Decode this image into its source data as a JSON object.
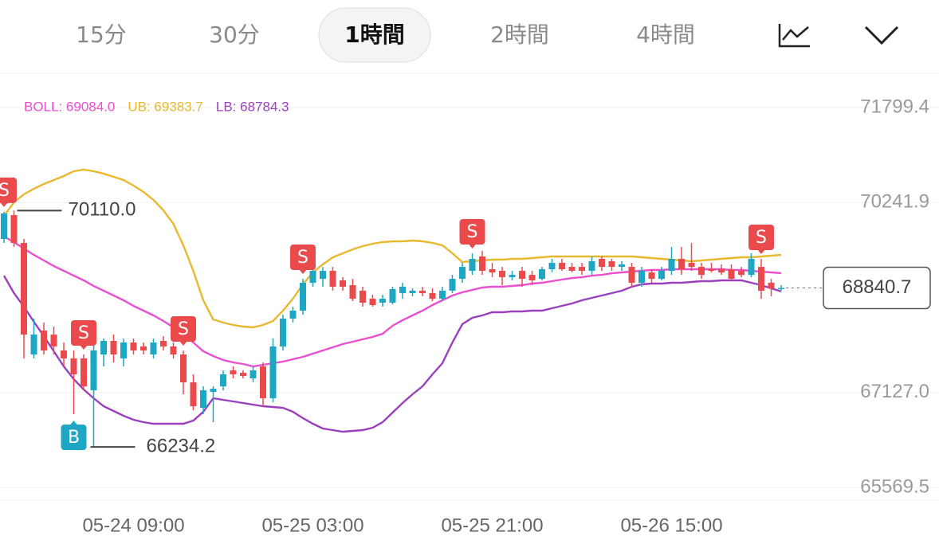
{
  "tabs": {
    "items": [
      "15分",
      "30分",
      "1時間",
      "2時間",
      "4時間"
    ],
    "selected": 2
  },
  "chart_data": {
    "type": "candlestick",
    "categories": [
      null,
      null,
      null,
      null,
      null,
      null,
      null,
      null,
      null,
      null,
      null,
      null,
      null,
      "05-24 09:00",
      null,
      null,
      null,
      null,
      null,
      null,
      null,
      null,
      null,
      null,
      null,
      null,
      null,
      null,
      null,
      null,
      null,
      "05-25 03:00",
      null,
      null,
      null,
      null,
      null,
      null,
      null,
      null,
      null,
      null,
      null,
      null,
      null,
      null,
      null,
      null,
      null,
      "05-25 21:00",
      null,
      null,
      null,
      null,
      null,
      null,
      null,
      null,
      null,
      null,
      null,
      null,
      null,
      null,
      null,
      null,
      null,
      "05-26 15:00",
      null,
      null,
      null,
      null,
      null,
      null,
      null,
      null,
      null,
      null,
      null
    ],
    "open": [
      69644,
      70036,
      69579,
      67751,
      68143,
      68077,
      67816,
      67686,
      67686,
      67163,
      67751,
      67973,
      67686,
      67947,
      67882,
      67751,
      67973,
      67882,
      67751,
      67294,
      66876,
      67137,
      67228,
      67490,
      67450,
      67359,
      67555,
      67033,
      67882,
      68339,
      68469,
      68926,
      68991,
      69122,
      68965,
      68887,
      68796,
      68665,
      68600,
      68600,
      68757,
      68757,
      68796,
      68757,
      68665,
      68796,
      68991,
      69122,
      69357,
      69148,
      69122,
      69017,
      69122,
      69056,
      68991,
      69148,
      69253,
      69187,
      69187,
      69122,
      69318,
      69279,
      69187,
      69187,
      68926,
      69096,
      68991,
      69122,
      69318,
      69253,
      69187,
      69148,
      69148,
      69148,
      69122,
      69056,
      69187,
      68926,
      68822
    ],
    "high": [
      70090,
      70110.0,
      69644,
      68339,
      68273,
      68208,
      67947,
      67816,
      67751,
      67947,
      68012,
      68077,
      68012,
      68012,
      67947,
      68012,
      68051,
      67947,
      67816,
      67425,
      67228,
      67228,
      67490,
      67555,
      67490,
      67555,
      67621,
      68012,
      68404,
      68535,
      68991,
      69253,
      69187,
      69187,
      69017,
      68991,
      68861,
      68730,
      68730,
      68861,
      68926,
      68835,
      68861,
      68835,
      68861,
      69056,
      69253,
      69409,
      69448,
      69253,
      69187,
      69122,
      69187,
      69122,
      69187,
      69318,
      69318,
      69253,
      69253,
      69357,
      69357,
      69318,
      69279,
      69253,
      69187,
      69148,
      69187,
      69514,
      69514,
      69579,
      69253,
      69253,
      69227,
      69227,
      69187,
      69409,
      69318,
      68991,
      68887
    ],
    "low": [
      69579,
      69514,
      67686,
      67686,
      67751,
      67751,
      67555,
      66771,
      67163,
      66234.2,
      67555,
      67621,
      67555,
      67751,
      67751,
      67686,
      67816,
      67686,
      67098,
      66837,
      66771,
      66641,
      67163,
      67359,
      67359,
      67294,
      66902,
      66967,
      67816,
      68273,
      68404,
      68861,
      68861,
      68796,
      68796,
      68626,
      68535,
      68535,
      68535,
      68574,
      68665,
      68704,
      68704,
      68626,
      68626,
      68757,
      68926,
      69056,
      69056,
      69017,
      68887,
      68965,
      68861,
      68887,
      68965,
      69096,
      69122,
      69096,
      69056,
      69056,
      69122,
      69122,
      69122,
      68861,
      68861,
      68926,
      68965,
      69056,
      69056,
      69122,
      68991,
      69096,
      69056,
      68965,
      69017,
      69017,
      68665,
      68704,
      68796
    ],
    "close": [
      70062,
      69579,
      68077,
      68077,
      67816,
      67882,
      67686,
      67425,
      67228,
      67816,
      67973,
      67751,
      67947,
      67816,
      67816,
      67947,
      67882,
      67751,
      67294,
      66902,
      67163,
      67189,
      67425,
      67425,
      67398,
      67490,
      67033,
      67882,
      68339,
      68469,
      68926,
      69122,
      69122,
      68861,
      68861,
      68665,
      68600,
      68561,
      68665,
      68822,
      68861,
      68796,
      68757,
      68665,
      68796,
      68991,
      69187,
      69318,
      69122,
      69096,
      69017,
      69056,
      68991,
      68965,
      69148,
      69253,
      69148,
      69122,
      69122,
      69279,
      69187,
      69187,
      69227,
      68926,
      69122,
      68991,
      69122,
      69318,
      69148,
      69187,
      69056,
      69122,
      69096,
      68991,
      69056,
      69318,
      68796,
      68835,
      68840.7
    ],
    "up_color": "#1ea7c4",
    "down_color": "#ea4a4c",
    "series": [
      {
        "name": "BOLL: 69084.0",
        "color": "#ea4fcf",
        "values": [
          69684,
          69592,
          69487,
          69383,
          69292,
          69200,
          69122,
          69043,
          68965,
          68874,
          68796,
          68717,
          68639,
          68548,
          68469,
          68391,
          68299,
          68195,
          68077,
          67947,
          67803,
          67725,
          67660,
          67621,
          67594,
          67555,
          67581,
          67607,
          67633,
          67673,
          67712,
          67764,
          67816,
          67869,
          67921,
          67960,
          67999,
          68038,
          68090,
          68221,
          68313,
          68391,
          68469,
          68561,
          68639,
          68717,
          68770,
          68809,
          68848,
          68861,
          68861,
          68874,
          68887,
          68913,
          68926,
          68952,
          68978,
          69004,
          69017,
          69043,
          69056,
          69082,
          69096,
          69109,
          69122,
          69135,
          69135,
          69148,
          69148,
          69148,
          69148,
          69148,
          69148,
          69135,
          69135,
          69122,
          69109,
          69096,
          69084.0
        ]
      },
      {
        "name": "UB: 69383.7",
        "color": "#e8b82e",
        "values": [
          70023,
          70246,
          70376,
          70468,
          70546,
          70611,
          70676,
          70755,
          70781,
          70755,
          70716,
          70663,
          70611,
          70520,
          70415,
          70285,
          70115,
          69893,
          69540,
          69122,
          68639,
          68326,
          68273,
          68234,
          68208,
          68195,
          68234,
          68299,
          68469,
          68665,
          68900,
          69096,
          69227,
          69344,
          69409,
          69474,
          69527,
          69566,
          69592,
          69605,
          69605,
          69618,
          69605,
          69579,
          69540,
          69409,
          69266,
          69279,
          69292,
          69305,
          69305,
          69318,
          69318,
          69331,
          69344,
          69357,
          69357,
          69357,
          69357,
          69357,
          69357,
          69357,
          69357,
          69357,
          69344,
          69331,
          69318,
          69305,
          69292,
          69279,
          69292,
          69305,
          69318,
          69331,
          69344,
          69344,
          69357,
          69370,
          69383.7
        ]
      },
      {
        "name": "LB: 68784.3",
        "color": "#9a40bf",
        "values": [
          69043,
          68757,
          68535,
          68286,
          68051,
          67803,
          67555,
          67346,
          67176,
          67033,
          66902,
          66824,
          66745,
          66680,
          66641,
          66615,
          66615,
          66615,
          66615,
          66667,
          66811,
          67033,
          67006,
          66980,
          66954,
          66928,
          66902,
          66889,
          66876,
          66811,
          66706,
          66615,
          66536,
          66510,
          66484,
          66497,
          66510,
          66549,
          66641,
          66798,
          66954,
          67098,
          67228,
          67425,
          67607,
          67947,
          68247,
          68352,
          68391,
          68443,
          68443,
          68456,
          68456,
          68469,
          68469,
          68509,
          68548,
          68587,
          68639,
          68678,
          68717,
          68757,
          68796,
          68861,
          68900,
          68913,
          68913,
          68926,
          68926,
          68939,
          68952,
          68952,
          68965,
          68965,
          68965,
          68926,
          68887,
          68835,
          68784.3
        ]
      }
    ],
    "ylim": [
      65361,
      72348
    ],
    "yticks": [
      65569.5,
      {
        "value": 67127,
        "label": "67127.0"
      },
      70241.9,
      71799.4
    ],
    "grid": true,
    "high_label": "70110.0",
    "low_label": "66234.2",
    "last_price_label": "68840.7",
    "markers": [
      {
        "index": 0,
        "label": "S"
      },
      {
        "index": 7,
        "label": "B"
      },
      {
        "index": 8,
        "label": "S"
      },
      {
        "index": 18,
        "label": "S"
      },
      {
        "index": 30,
        "label": "S"
      },
      {
        "index": 47,
        "label": "S"
      },
      {
        "index": 76,
        "label": "S"
      }
    ]
  }
}
